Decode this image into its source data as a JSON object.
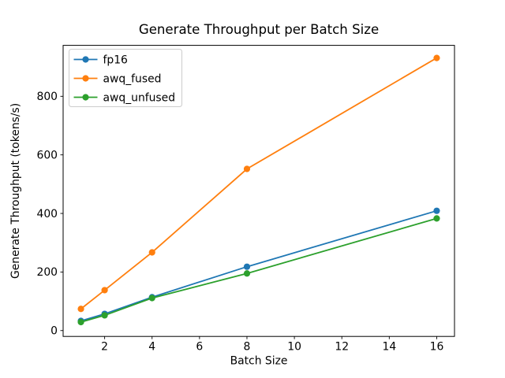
{
  "chart_data": {
    "type": "line",
    "title": "Generate Throughput per Batch Size",
    "xlabel": "Batch Size",
    "ylabel": "Generate Throughput (tokens/s)",
    "x": [
      1,
      2,
      4,
      8,
      16
    ],
    "series": [
      {
        "name": "fp16",
        "color": "#1f77b4",
        "values": [
          33,
          57,
          114,
          218,
          409
        ]
      },
      {
        "name": "awq_fused",
        "color": "#ff7f0e",
        "values": [
          74,
          138,
          267,
          552,
          931
        ]
      },
      {
        "name": "awq_unfused",
        "color": "#2ca02c",
        "values": [
          29,
          52,
          111,
          195,
          383
        ]
      }
    ],
    "xticks": [
      2,
      4,
      6,
      8,
      10,
      12,
      14,
      16
    ],
    "yticks": [
      0,
      200,
      400,
      600,
      800
    ],
    "xlim": [
      0.25,
      16.75
    ],
    "ylim": [
      -20,
      974
    ],
    "grid": false,
    "legend_position": "upper left",
    "marker": "circle",
    "colors": {
      "spine": "#000000",
      "background": "#ffffff",
      "legend_border": "#cccccc",
      "text": "#000000"
    }
  }
}
